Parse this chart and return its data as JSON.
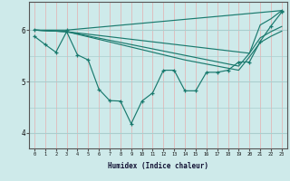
{
  "xlabel": "Humidex (Indice chaleur)",
  "bg_color": "#ceeaea",
  "grid_color_h": "#aacece",
  "grid_color_v": "#e0b8b8",
  "line_color": "#1a7a6e",
  "xlim": [
    -0.5,
    23.5
  ],
  "ylim": [
    3.7,
    6.55
  ],
  "yticks": [
    4,
    5,
    6
  ],
  "xticks": [
    0,
    1,
    2,
    3,
    4,
    5,
    6,
    7,
    8,
    9,
    10,
    11,
    12,
    13,
    14,
    15,
    16,
    17,
    18,
    19,
    20,
    21,
    22,
    23
  ],
  "series": [
    {
      "x": [
        0,
        3,
        23
      ],
      "y": [
        6.0,
        6.0,
        6.38
      ],
      "marker": true,
      "smooth": false
    },
    {
      "x": [
        0,
        3,
        20,
        21,
        22,
        23
      ],
      "y": [
        6.0,
        5.97,
        5.55,
        6.1,
        6.22,
        6.38
      ],
      "marker": false,
      "smooth": false
    },
    {
      "x": [
        0,
        3,
        19,
        20,
        21,
        22,
        23
      ],
      "y": [
        6.0,
        5.97,
        5.3,
        5.55,
        5.85,
        5.97,
        6.07
      ],
      "marker": false,
      "smooth": false
    },
    {
      "x": [
        0,
        3,
        14,
        19,
        20,
        21,
        22,
        23
      ],
      "y": [
        6.0,
        5.97,
        5.42,
        5.22,
        5.48,
        5.76,
        5.88,
        5.98
      ],
      "marker": false,
      "smooth": false
    },
    {
      "x": [
        0,
        1,
        2,
        3,
        4,
        5,
        6,
        7,
        8,
        9,
        10,
        11,
        12,
        13,
        14,
        15,
        16,
        17,
        18,
        19,
        20,
        21,
        22,
        23
      ],
      "y": [
        5.88,
        5.72,
        5.57,
        5.97,
        5.52,
        5.42,
        4.85,
        4.63,
        4.62,
        4.18,
        4.62,
        4.78,
        5.22,
        5.22,
        4.82,
        4.82,
        5.18,
        5.18,
        5.22,
        5.38,
        5.38,
        5.78,
        6.08,
        6.35
      ],
      "marker": true,
      "smooth": false
    }
  ]
}
